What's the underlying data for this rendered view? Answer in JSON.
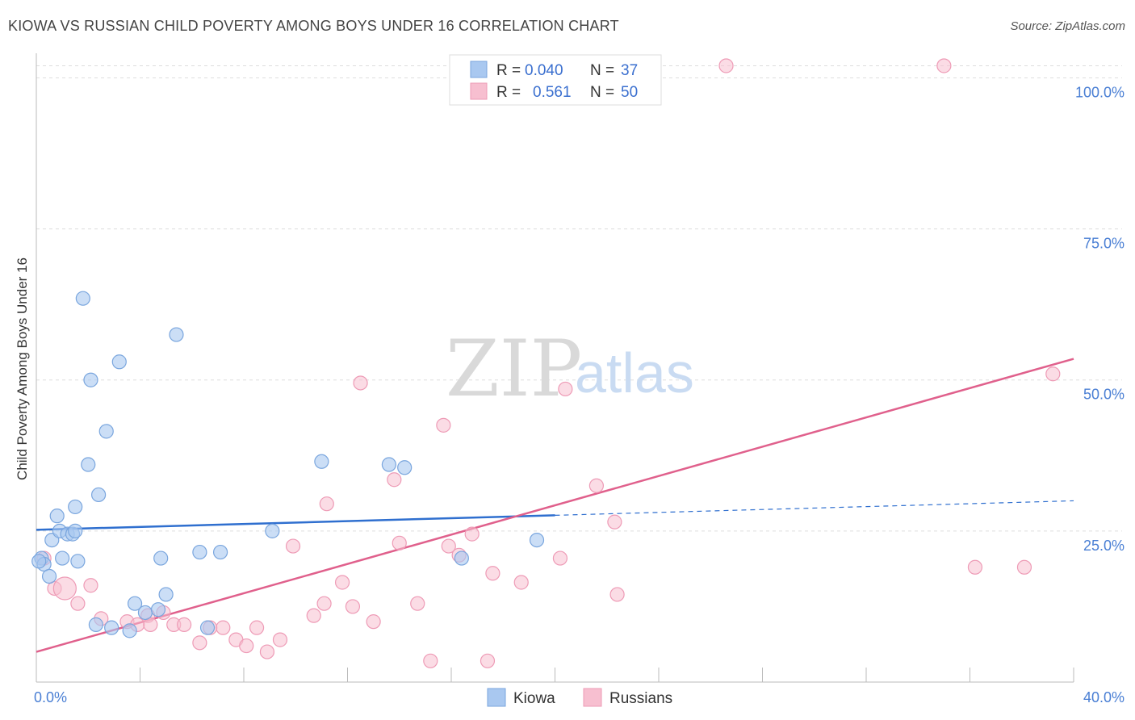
{
  "title": "KIOWA VS RUSSIAN CHILD POVERTY AMONG BOYS UNDER 16 CORRELATION CHART",
  "source": "Source: ZipAtlas.com",
  "watermark": {
    "zip": "ZIP",
    "atlas": "atlas"
  },
  "colors": {
    "kiowa_fill": "#a9c8f0",
    "kiowa_stroke": "#7aa6de",
    "kiowa_line": "#2f6fcf",
    "russians_fill": "#f7bfd0",
    "russians_stroke": "#ee9bb6",
    "russians_line": "#e0608c",
    "grid": "#dddddd",
    "axis_label": "#4a7fd4"
  },
  "legend_top": {
    "rows": [
      {
        "r_label": "R = ",
        "r_value": "0.040",
        "n_label": "N = ",
        "n_value": "37"
      },
      {
        "r_label": "R = ",
        "r_value": "0.561",
        "n_label": "N = ",
        "n_value": "50"
      }
    ]
  },
  "chart_data": {
    "type": "scatter",
    "ylabel": "Child Poverty Among Boys Under 16",
    "xlim": [
      0,
      40
    ],
    "ylim": [
      0,
      103
    ],
    "x_tick_labels": [
      {
        "value": 0,
        "label": "0.0%"
      },
      {
        "value": 40,
        "label": "40.0%"
      }
    ],
    "y_tick_labels": [
      {
        "value": 25,
        "label": "25.0%"
      },
      {
        "value": 50,
        "label": "50.0%"
      },
      {
        "value": 75,
        "label": "75.0%"
      },
      {
        "value": 100,
        "label": "100.0%"
      }
    ],
    "grid": true,
    "legend": "bottom-center",
    "series": [
      {
        "name": "Kiowa",
        "points": [
          [
            0.2,
            20.5
          ],
          [
            0.3,
            19.5
          ],
          [
            0.5,
            17.5
          ],
          [
            0.6,
            23.5
          ],
          [
            0.8,
            27.5
          ],
          [
            0.9,
            25.0
          ],
          [
            1.0,
            20.5
          ],
          [
            1.2,
            24.5
          ],
          [
            1.4,
            24.5
          ],
          [
            1.5,
            25.0
          ],
          [
            1.5,
            29.0
          ],
          [
            1.6,
            20.0
          ],
          [
            1.8,
            63.5
          ],
          [
            2.0,
            36.0
          ],
          [
            2.1,
            50.0
          ],
          [
            2.3,
            9.5
          ],
          [
            2.4,
            31.0
          ],
          [
            2.7,
            41.5
          ],
          [
            2.9,
            9.0
          ],
          [
            3.2,
            53.0
          ],
          [
            3.6,
            8.5
          ],
          [
            3.8,
            13.0
          ],
          [
            4.2,
            11.5
          ],
          [
            4.7,
            12.0
          ],
          [
            4.8,
            20.5
          ],
          [
            5.0,
            14.5
          ],
          [
            5.4,
            57.5
          ],
          [
            6.3,
            21.5
          ],
          [
            6.6,
            9.0
          ],
          [
            7.1,
            21.5
          ],
          [
            9.1,
            25.0
          ],
          [
            11.0,
            36.5
          ],
          [
            13.6,
            36.0
          ],
          [
            14.2,
            35.5
          ],
          [
            16.4,
            20.5
          ],
          [
            19.3,
            23.5
          ],
          [
            0.1,
            20.0
          ]
        ],
        "trend": {
          "x": [
            0,
            20
          ],
          "y": [
            25.2,
            27.6
          ],
          "dashed_to": [
            40,
            30.0
          ]
        }
      },
      {
        "name": "Russians",
        "points": [
          [
            0.3,
            20.5
          ],
          [
            0.7,
            15.5
          ],
          [
            1.6,
            13.0
          ],
          [
            2.1,
            16.0
          ],
          [
            2.5,
            10.5
          ],
          [
            3.5,
            10.0
          ],
          [
            3.9,
            9.5
          ],
          [
            4.3,
            11.0
          ],
          [
            4.4,
            9.5
          ],
          [
            4.9,
            11.5
          ],
          [
            5.3,
            9.5
          ],
          [
            5.7,
            9.5
          ],
          [
            6.3,
            6.5
          ],
          [
            6.7,
            9.0
          ],
          [
            7.2,
            9.0
          ],
          [
            7.7,
            7.0
          ],
          [
            8.1,
            6.0
          ],
          [
            8.5,
            9.0
          ],
          [
            8.9,
            5.0
          ],
          [
            9.4,
            7.0
          ],
          [
            9.9,
            22.5
          ],
          [
            10.7,
            11.0
          ],
          [
            11.1,
            13.0
          ],
          [
            11.2,
            29.5
          ],
          [
            11.8,
            16.5
          ],
          [
            12.2,
            12.5
          ],
          [
            12.5,
            49.5
          ],
          [
            13.0,
            10.0
          ],
          [
            13.8,
            33.5
          ],
          [
            14.0,
            23.0
          ],
          [
            14.7,
            13.0
          ],
          [
            15.2,
            3.5
          ],
          [
            15.7,
            42.5
          ],
          [
            15.9,
            22.5
          ],
          [
            16.3,
            21.0
          ],
          [
            16.8,
            24.5
          ],
          [
            17.4,
            3.5
          ],
          [
            17.6,
            18.0
          ],
          [
            18.7,
            16.5
          ],
          [
            20.4,
            48.5
          ],
          [
            20.2,
            20.5
          ],
          [
            21.6,
            32.5
          ],
          [
            22.3,
            26.5
          ],
          [
            22.4,
            14.5
          ],
          [
            26.6,
            102.0
          ],
          [
            35.0,
            102.0
          ],
          [
            36.2,
            19.0
          ],
          [
            38.1,
            19.0
          ],
          [
            39.2,
            51.0
          ],
          [
            1.1,
            15.5
          ]
        ],
        "trend": {
          "x": [
            0,
            40
          ],
          "y": [
            5.0,
            53.5
          ]
        }
      }
    ]
  }
}
